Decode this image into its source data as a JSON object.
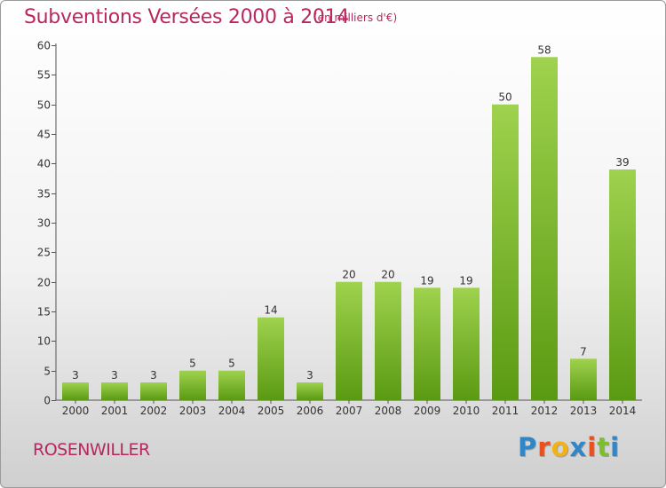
{
  "header": {
    "title": "Subventions Versées 2000 à 2014",
    "unit": "(en milliers d'€)"
  },
  "footer": {
    "place": "ROSENWILLER",
    "logo": "Proxiti",
    "logo_colors": [
      "#2f86c8",
      "#e8501e",
      "#f0b21a",
      "#2f86c8",
      "#e8501e",
      "#7bbf2a",
      "#2f86c8"
    ]
  },
  "colors": {
    "bar_top": "#9fd24e",
    "bar_bottom": "#5a9a12",
    "text_accent": "#b8285f"
  },
  "chart_data": {
    "type": "bar",
    "title": "Subventions Versées 2000 à 2014",
    "categories": [
      "2000",
      "2001",
      "2002",
      "2003",
      "2004",
      "2005",
      "2006",
      "2007",
      "2008",
      "2009",
      "2010",
      "2011",
      "2012",
      "2013",
      "2014"
    ],
    "values": [
      3,
      3,
      3,
      5,
      5,
      14,
      3,
      20,
      20,
      19,
      19,
      50,
      58,
      7,
      39
    ],
    "ylim": [
      0,
      60
    ],
    "yticks": [
      0,
      5,
      10,
      15,
      20,
      25,
      30,
      35,
      40,
      45,
      50,
      55,
      60
    ],
    "grid": false,
    "data_labels": true
  }
}
